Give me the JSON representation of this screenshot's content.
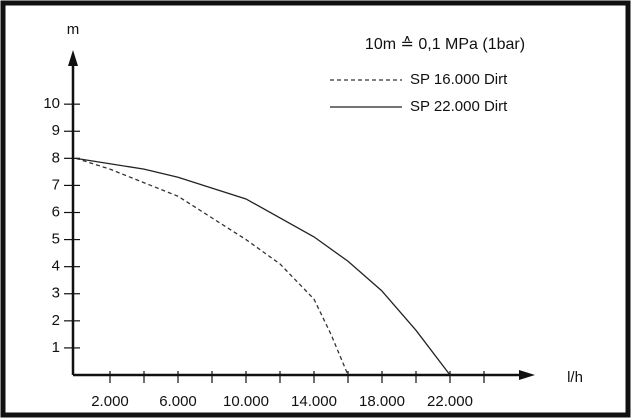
{
  "chart_data": {
    "type": "line",
    "annotation": "10m ≙ 0,1 MPa (1bar)",
    "y_label": "m",
    "x_label": "l/h",
    "series": [
      {
        "name": "SP 16.000 Dirt",
        "color": "#333333",
        "dash": true,
        "x": [
          0,
          2000,
          6000,
          10000,
          12000,
          14000,
          15000,
          16000
        ],
        "values": [
          8,
          7.6,
          6.6,
          5.0,
          4.1,
          2.8,
          1.5,
          0
        ]
      },
      {
        "name": "SP 22.000 Dirt",
        "color": "#222222",
        "dash": false,
        "x": [
          0,
          4000,
          6000,
          10000,
          14000,
          16000,
          18000,
          20000,
          22000
        ],
        "values": [
          8,
          7.6,
          7.3,
          6.5,
          5.1,
          4.2,
          3.1,
          1.65,
          0
        ]
      }
    ],
    "xlim": [
      0,
      27000
    ],
    "ylim": [
      0,
      12
    ],
    "xticks": [
      {
        "value": 2000,
        "label": "2.000"
      },
      {
        "value": 6000,
        "label": "6.000"
      },
      {
        "value": 10000,
        "label": "10.000"
      },
      {
        "value": 14000,
        "label": "14.000"
      },
      {
        "value": 18000,
        "label": "18.000"
      },
      {
        "value": 22000,
        "label": "22.000"
      }
    ],
    "x_minor_ticks": [
      4000,
      8000,
      12000,
      16000,
      20000,
      24000
    ],
    "yticks": [
      1,
      2,
      3,
      4,
      5,
      6,
      7,
      8,
      9,
      10
    ],
    "grid": false
  }
}
